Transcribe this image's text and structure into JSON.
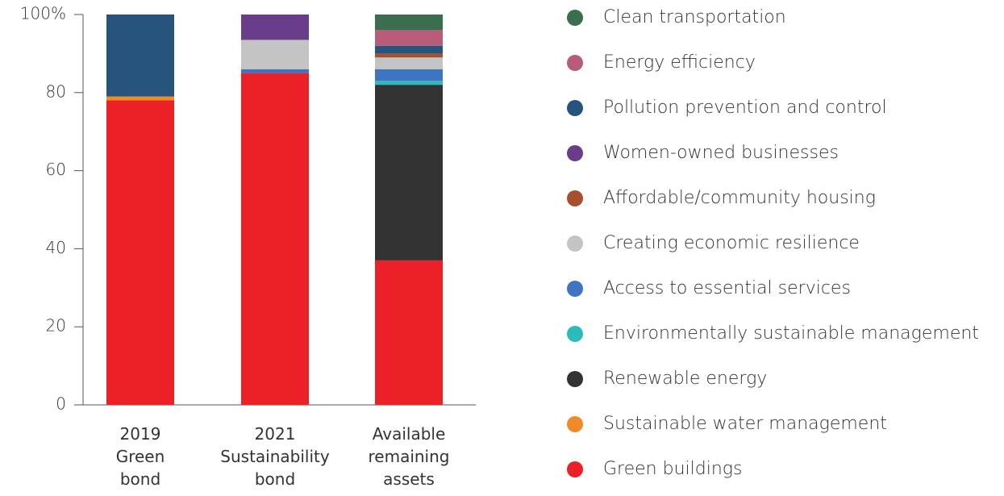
{
  "chart_data": {
    "type": "stacked_bar",
    "categories": [
      "2019\nGreen\nbond",
      "2021\nSustainability\nbond",
      "Available\nremaining\nassets"
    ],
    "series": [
      {
        "name": "Clean transportation",
        "color": "#3a6e4f",
        "values": [
          0,
          0,
          4
        ]
      },
      {
        "name": "Energy efficiency",
        "color": "#b85c78",
        "values": [
          0,
          0,
          4
        ]
      },
      {
        "name": "Pollution prevention and control",
        "color": "#26547c",
        "values": [
          21,
          0,
          2
        ]
      },
      {
        "name": "Women-owned businesses",
        "color": "#6a3d8a",
        "values": [
          0,
          6.5,
          0
        ]
      },
      {
        "name": "Affordable/community housing",
        "color": "#a8502e",
        "values": [
          0,
          0,
          1
        ]
      },
      {
        "name": "Creating economic resilience",
        "color": "#c4c4c4",
        "values": [
          0,
          7.5,
          3
        ]
      },
      {
        "name": "Access to essential services",
        "color": "#3f74c2",
        "values": [
          0,
          1,
          3
        ]
      },
      {
        "name": "Environmentally sustainable management",
        "color": "#2abcbc",
        "values": [
          0,
          0,
          1
        ]
      },
      {
        "name": "Renewable energy",
        "color": "#333333",
        "values": [
          0,
          0,
          45
        ]
      },
      {
        "name": "Sustainable water management",
        "color": "#f08c28",
        "values": [
          1,
          0,
          0
        ]
      },
      {
        "name": "Green buildings",
        "color": "#ec2027",
        "values": [
          78,
          85,
          37
        ]
      }
    ],
    "ylim": [
      0,
      100
    ],
    "yticks": [
      0,
      20,
      40,
      60,
      80,
      {
        "value": 100,
        "label": "100%"
      }
    ],
    "legend": "right"
  }
}
